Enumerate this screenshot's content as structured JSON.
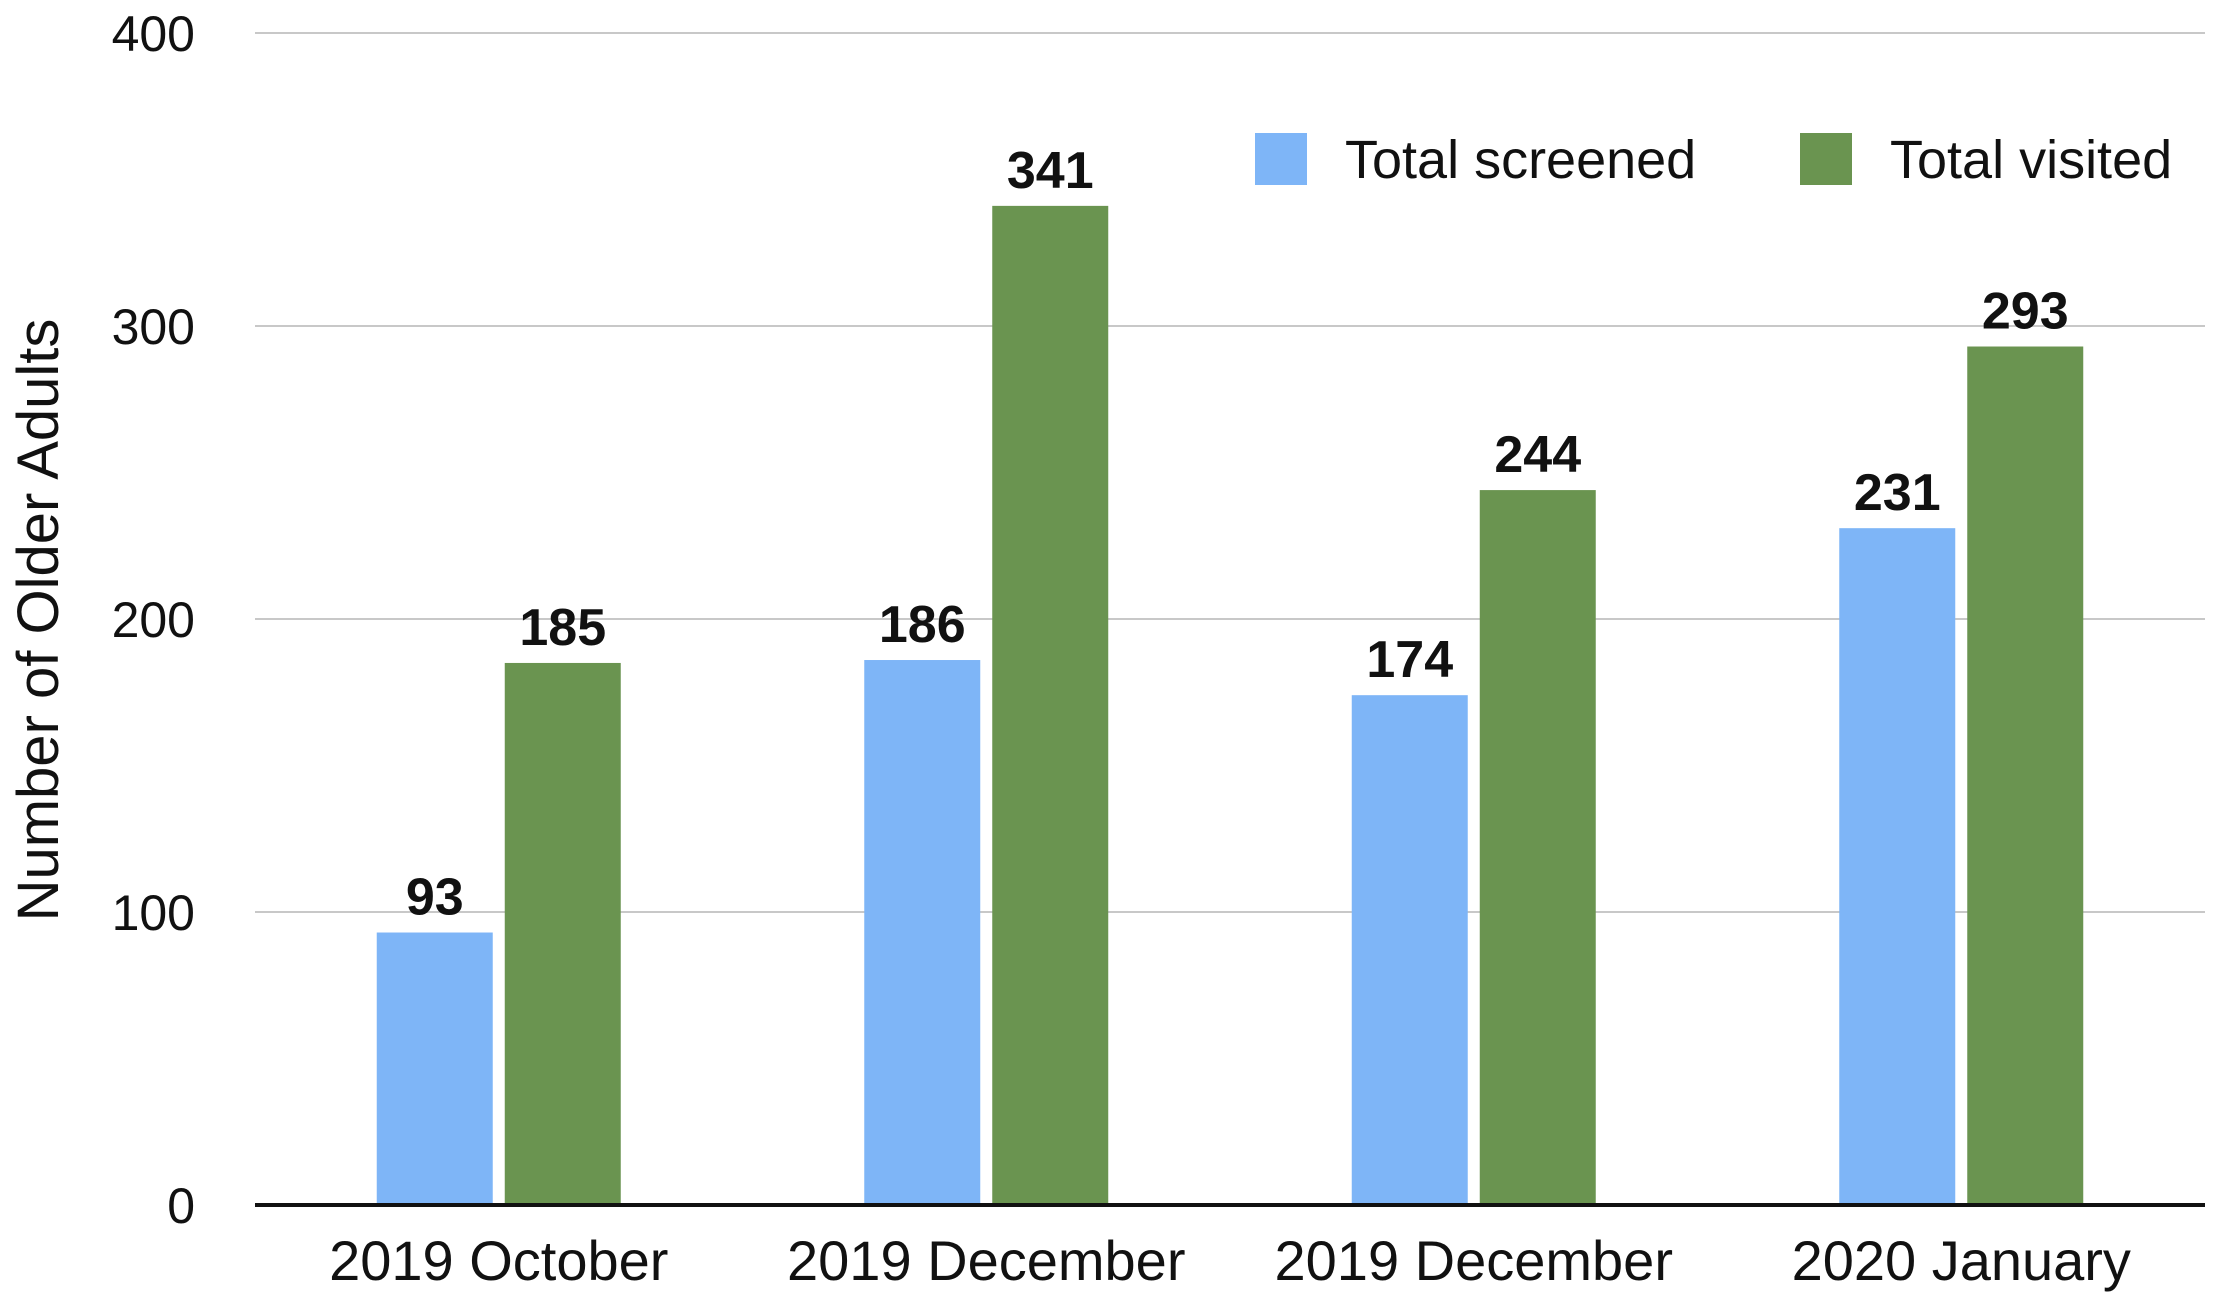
{
  "chart_data": {
    "type": "bar",
    "title": "",
    "xlabel": "",
    "ylabel": "Number of Older Adults",
    "ylim": [
      0,
      400
    ],
    "yticks": [
      0,
      100,
      200,
      300,
      400
    ],
    "grid": true,
    "legend_position": "top-right",
    "categories": [
      "2019 October",
      "2019 December",
      "2019 December",
      "2020 January"
    ],
    "series": [
      {
        "name": "Total screened",
        "color": "#7EB5F7",
        "values": [
          93,
          186,
          174,
          231
        ]
      },
      {
        "name": "Total visited",
        "color": "#6A9450",
        "values": [
          185,
          341,
          244,
          293
        ]
      }
    ]
  }
}
